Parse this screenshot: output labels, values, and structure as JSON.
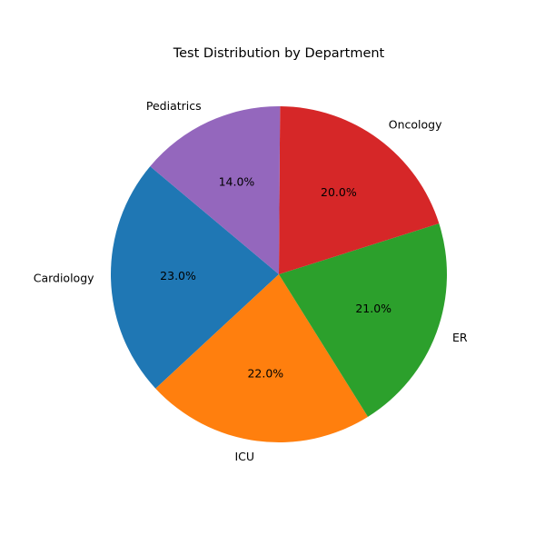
{
  "chart_data": {
    "type": "pie",
    "title": "Test Distribution by Department",
    "categories": [
      "Cardiology",
      "ICU",
      "ER",
      "Oncology",
      "Pediatrics"
    ],
    "values": [
      23.0,
      22.0,
      21.0,
      20.0,
      14.0
    ],
    "percent_labels": [
      "23.0%",
      "22.0%",
      "21.0%",
      "20.0%",
      "14.0%"
    ],
    "colors": [
      "#1f77b4",
      "#ff7f0e",
      "#2ca02c",
      "#d62728",
      "#9467bd"
    ],
    "start_angle_deg": 140,
    "direction": "counterclockwise",
    "legend": "none"
  }
}
